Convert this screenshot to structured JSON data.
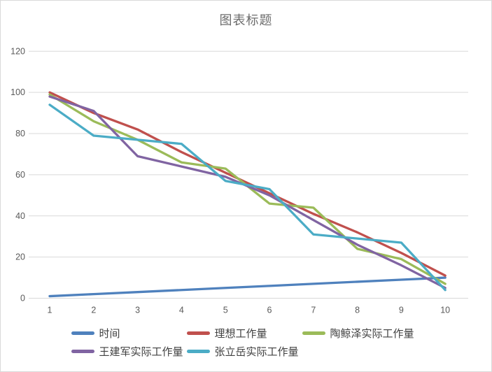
{
  "title": "图表标题",
  "colors": {
    "gridline": "#d9d9d9",
    "axis_text": "#595959",
    "title_text": "#6d6d6d",
    "legend_text": "#404040",
    "frame_border": "#d9d9d9"
  },
  "chart_data": {
    "type": "line",
    "title": "图表标题",
    "x": [
      1,
      2,
      3,
      4,
      5,
      6,
      7,
      8,
      9,
      10
    ],
    "xticks": [
      "1",
      "2",
      "3",
      "4",
      "5",
      "6",
      "7",
      "8",
      "9",
      "10"
    ],
    "yticks": [
      0,
      20,
      40,
      60,
      80,
      100,
      120
    ],
    "ylim": [
      0,
      120
    ],
    "grid": true,
    "legend_position": "bottom",
    "series": [
      {
        "name": "时间",
        "color": "#4F81BD",
        "values": [
          1,
          2,
          3,
          4,
          5,
          6,
          7,
          8,
          9,
          10
        ]
      },
      {
        "name": "理想工作量",
        "color": "#C0504D",
        "values": [
          100,
          90,
          82,
          71,
          61,
          51,
          41,
          32,
          22,
          11
        ]
      },
      {
        "name": "陶鲸泽实际工作量",
        "color": "#9BBB59",
        "values": [
          99,
          86,
          77,
          66,
          63,
          46,
          44,
          24,
          19,
          7
        ]
      },
      {
        "name": "王建军实际工作量",
        "color": "#8064A2",
        "values": [
          98,
          91,
          69,
          64,
          59,
          50,
          38,
          26,
          16,
          5
        ]
      },
      {
        "name": "张立岳实际工作量",
        "color": "#4BACC6",
        "values": [
          94,
          79,
          77,
          75,
          57,
          53,
          31,
          29,
          27,
          4
        ]
      }
    ]
  }
}
